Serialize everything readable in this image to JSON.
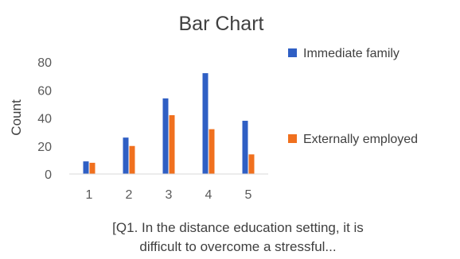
{
  "chart_data": {
    "type": "bar",
    "title": "Bar Chart",
    "ylabel": "Count",
    "xlabel_lines": [
      "[Q1. In the distance education setting, it is",
      "difficult to overcome a stressful..."
    ],
    "categories": [
      "1",
      "2",
      "3",
      "4",
      "5"
    ],
    "series": [
      {
        "name": "Immediate family",
        "values": [
          9,
          26,
          54,
          72,
          38
        ],
        "color": "#2F5FC4"
      },
      {
        "name": "Externally employed",
        "values": [
          8,
          20,
          42,
          32,
          14
        ],
        "color": "#F0701E"
      }
    ],
    "ylim": [
      0,
      80
    ],
    "yticks": [
      "0",
      "20",
      "40",
      "60",
      "80"
    ],
    "grid": false,
    "legend_position": "right"
  }
}
